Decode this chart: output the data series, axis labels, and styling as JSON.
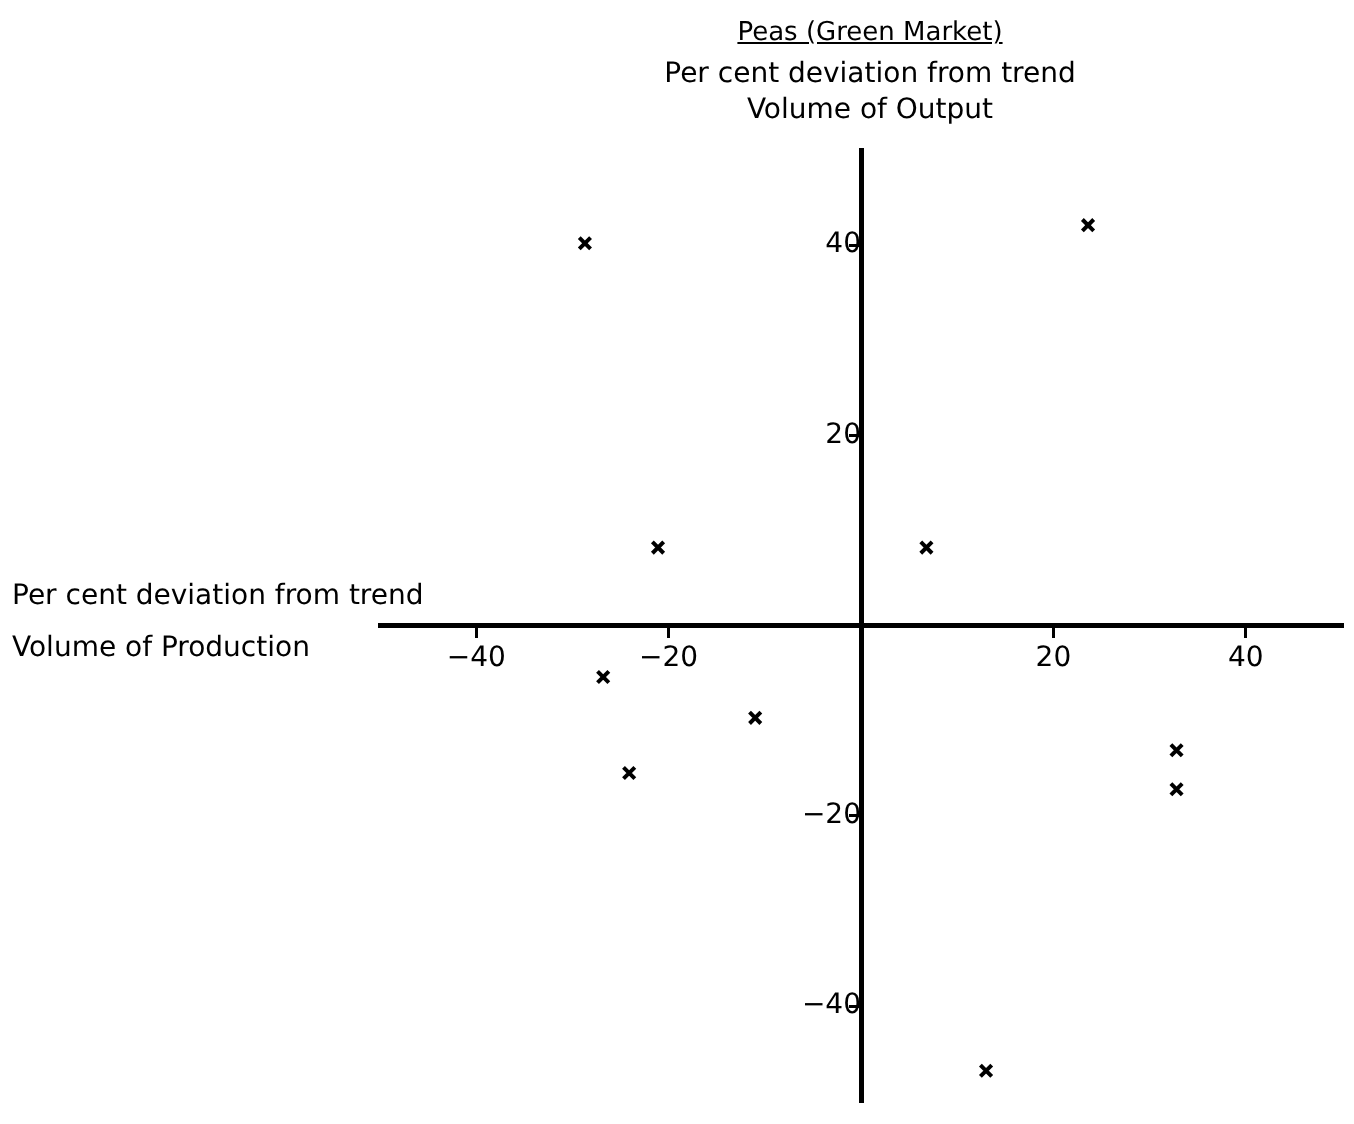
{
  "chart_data": {
    "type": "scatter",
    "title": "Peas (Green Market)",
    "ylabel": "Per cent deviation from trend\nVolume of Output",
    "xlabel": "Per cent deviation from trend\nVolume of Production",
    "series": [
      {
        "color": "#000000",
        "x": [
          -28.7,
          23.6,
          -21.1,
          6.8,
          -26.8,
          -11.0,
          -24.1,
          32.8,
          32.8,
          13.0
        ],
        "values": [
          40.2,
          42.1,
          8.2,
          8.2,
          -5.4,
          -9.7,
          -15.5,
          -13.1,
          -17.2,
          -46.8
        ]
      }
    ],
    "xlim": [
      -50,
      50
    ],
    "ylim": [
      -50,
      50
    ],
    "xticks": [
      -40,
      -20,
      20,
      40
    ],
    "yticks": [
      -40,
      -20,
      20,
      40
    ],
    "marker": "cross",
    "grid": false,
    "legend": false
  }
}
